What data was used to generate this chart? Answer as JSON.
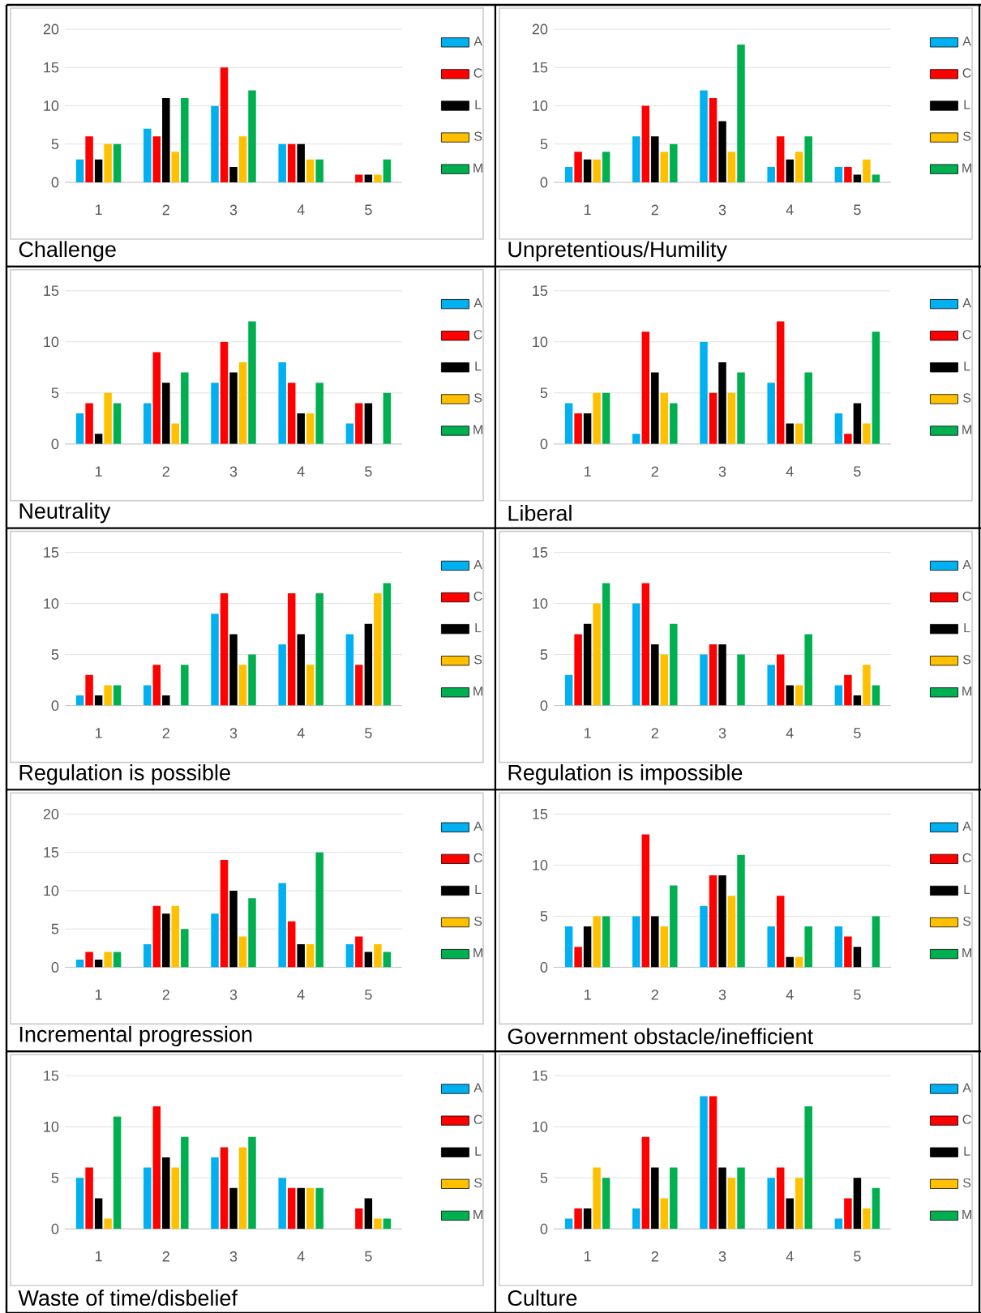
{
  "chart_data": [
    {
      "type": "bar",
      "title": "Challenge",
      "categories": [
        "1",
        "2",
        "3",
        "4",
        "5"
      ],
      "ylim": [
        0,
        20
      ],
      "yticks": [
        0,
        5,
        10,
        15,
        20
      ],
      "grid": "y",
      "legend": "right",
      "series": [
        {
          "name": "A",
          "color": "#00b0f0",
          "values": [
            3,
            7,
            10,
            5,
            0
          ]
        },
        {
          "name": "C",
          "color": "#ff0000",
          "values": [
            6,
            6,
            15,
            5,
            1
          ]
        },
        {
          "name": "L",
          "color": "#000000",
          "values": [
            3,
            11,
            2,
            5,
            1
          ]
        },
        {
          "name": "S",
          "color": "#ffc000",
          "values": [
            5,
            4,
            6,
            3,
            1
          ]
        },
        {
          "name": "M",
          "color": "#00b050",
          "values": [
            5,
            11,
            12,
            3,
            3
          ]
        }
      ]
    },
    {
      "type": "bar",
      "title": "Unpretentious/Humility",
      "categories": [
        "1",
        "2",
        "3",
        "4",
        "5"
      ],
      "ylim": [
        0,
        20
      ],
      "yticks": [
        0,
        5,
        10,
        15,
        20
      ],
      "grid": "y",
      "legend": "right",
      "series": [
        {
          "name": "A",
          "color": "#00b0f0",
          "values": [
            2,
            6,
            12,
            2,
            2
          ]
        },
        {
          "name": "C",
          "color": "#ff0000",
          "values": [
            4,
            10,
            11,
            6,
            2
          ]
        },
        {
          "name": "L",
          "color": "#000000",
          "values": [
            3,
            6,
            8,
            3,
            1
          ]
        },
        {
          "name": "S",
          "color": "#ffc000",
          "values": [
            3,
            4,
            4,
            4,
            3
          ]
        },
        {
          "name": "M",
          "color": "#00b050",
          "values": [
            4,
            5,
            18,
            6,
            1
          ]
        }
      ]
    },
    {
      "type": "bar",
      "title": "Neutrality",
      "categories": [
        "1",
        "2",
        "3",
        "4",
        "5"
      ],
      "ylim": [
        0,
        15
      ],
      "yticks": [
        0,
        5,
        10,
        15
      ],
      "grid": "y",
      "legend": "right",
      "series": [
        {
          "name": "A",
          "color": "#00b0f0",
          "values": [
            3,
            4,
            6,
            8,
            2
          ]
        },
        {
          "name": "C",
          "color": "#ff0000",
          "values": [
            4,
            9,
            10,
            6,
            4
          ]
        },
        {
          "name": "L",
          "color": "#000000",
          "values": [
            1,
            6,
            7,
            3,
            4
          ]
        },
        {
          "name": "S",
          "color": "#ffc000",
          "values": [
            5,
            2,
            8,
            3,
            0
          ]
        },
        {
          "name": "M",
          "color": "#00b050",
          "values": [
            4,
            7,
            12,
            6,
            5
          ]
        }
      ]
    },
    {
      "type": "bar",
      "title": "Liberal",
      "categories": [
        "1",
        "2",
        "3",
        "4",
        "5"
      ],
      "ylim": [
        0,
        15
      ],
      "yticks": [
        0,
        5,
        10,
        15
      ],
      "grid": "y",
      "legend": "right",
      "series": [
        {
          "name": "A",
          "color": "#00b0f0",
          "values": [
            4,
            1,
            10,
            6,
            3
          ]
        },
        {
          "name": "C",
          "color": "#ff0000",
          "values": [
            3,
            11,
            5,
            12,
            1
          ]
        },
        {
          "name": "L",
          "color": "#000000",
          "values": [
            3,
            7,
            8,
            2,
            4
          ]
        },
        {
          "name": "S",
          "color": "#ffc000",
          "values": [
            5,
            5,
            5,
            2,
            2
          ]
        },
        {
          "name": "M",
          "color": "#00b050",
          "values": [
            5,
            4,
            7,
            7,
            11
          ]
        }
      ]
    },
    {
      "type": "bar",
      "title": "Regulation is possible",
      "categories": [
        "1",
        "2",
        "3",
        "4",
        "5"
      ],
      "ylim": [
        0,
        15
      ],
      "yticks": [
        0,
        5,
        10,
        15
      ],
      "grid": "y",
      "legend": "right",
      "series": [
        {
          "name": "A",
          "color": "#00b0f0",
          "values": [
            1,
            2,
            9,
            6,
            7
          ]
        },
        {
          "name": "C",
          "color": "#ff0000",
          "values": [
            3,
            4,
            11,
            11,
            4
          ]
        },
        {
          "name": "L",
          "color": "#000000",
          "values": [
            1,
            1,
            7,
            7,
            8
          ]
        },
        {
          "name": "S",
          "color": "#ffc000",
          "values": [
            2,
            0,
            4,
            4,
            11
          ]
        },
        {
          "name": "M",
          "color": "#00b050",
          "values": [
            2,
            4,
            5,
            11,
            12
          ]
        }
      ]
    },
    {
      "type": "bar",
      "title": "Regulation is impossible",
      "categories": [
        "1",
        "2",
        "3",
        "4",
        "5"
      ],
      "ylim": [
        0,
        15
      ],
      "yticks": [
        0,
        5,
        10,
        15
      ],
      "grid": "y",
      "legend": "right",
      "series": [
        {
          "name": "A",
          "color": "#00b0f0",
          "values": [
            3,
            10,
            5,
            4,
            2
          ]
        },
        {
          "name": "C",
          "color": "#ff0000",
          "values": [
            7,
            12,
            6,
            5,
            3
          ]
        },
        {
          "name": "L",
          "color": "#000000",
          "values": [
            8,
            6,
            6,
            2,
            1
          ]
        },
        {
          "name": "S",
          "color": "#ffc000",
          "values": [
            10,
            5,
            0,
            2,
            4
          ]
        },
        {
          "name": "M",
          "color": "#00b050",
          "values": [
            12,
            8,
            5,
            7,
            2
          ]
        }
      ]
    },
    {
      "type": "bar",
      "title": "Incremental progression",
      "categories": [
        "1",
        "2",
        "3",
        "4",
        "5"
      ],
      "ylim": [
        0,
        20
      ],
      "yticks": [
        0,
        5,
        10,
        15,
        20
      ],
      "grid": "y",
      "legend": "right",
      "series": [
        {
          "name": "A",
          "color": "#00b0f0",
          "values": [
            1,
            3,
            7,
            11,
            3
          ]
        },
        {
          "name": "C",
          "color": "#ff0000",
          "values": [
            2,
            8,
            14,
            6,
            4
          ]
        },
        {
          "name": "L",
          "color": "#000000",
          "values": [
            1,
            7,
            10,
            3,
            2
          ]
        },
        {
          "name": "S",
          "color": "#ffc000",
          "values": [
            2,
            8,
            4,
            3,
            3
          ]
        },
        {
          "name": "M",
          "color": "#00b050",
          "values": [
            2,
            5,
            9,
            15,
            2
          ]
        }
      ]
    },
    {
      "type": "bar",
      "title": "Government obstacle/inefficient",
      "categories": [
        "1",
        "2",
        "3",
        "4",
        "5"
      ],
      "ylim": [
        0,
        15
      ],
      "yticks": [
        0,
        5,
        10,
        15
      ],
      "grid": "y",
      "legend": "right",
      "series": [
        {
          "name": "A",
          "color": "#00b0f0",
          "values": [
            4,
            5,
            6,
            4,
            4
          ]
        },
        {
          "name": "C",
          "color": "#ff0000",
          "values": [
            2,
            13,
            9,
            7,
            3
          ]
        },
        {
          "name": "L",
          "color": "#000000",
          "values": [
            4,
            5,
            9,
            1,
            2
          ]
        },
        {
          "name": "S",
          "color": "#ffc000",
          "values": [
            5,
            4,
            7,
            1,
            0
          ]
        },
        {
          "name": "M",
          "color": "#00b050",
          "values": [
            5,
            8,
            11,
            4,
            5
          ]
        }
      ]
    },
    {
      "type": "bar",
      "title": "Waste of time/disbelief",
      "categories": [
        "1",
        "2",
        "3",
        "4",
        "5"
      ],
      "ylim": [
        0,
        15
      ],
      "yticks": [
        0,
        5,
        10,
        15
      ],
      "grid": "y",
      "legend": "right",
      "series": [
        {
          "name": "A",
          "color": "#00b0f0",
          "values": [
            5,
            6,
            7,
            5,
            0
          ]
        },
        {
          "name": "C",
          "color": "#ff0000",
          "values": [
            6,
            12,
            8,
            4,
            2
          ]
        },
        {
          "name": "L",
          "color": "#000000",
          "values": [
            3,
            7,
            4,
            4,
            3
          ]
        },
        {
          "name": "S",
          "color": "#ffc000",
          "values": [
            1,
            6,
            8,
            4,
            1
          ]
        },
        {
          "name": "M",
          "color": "#00b050",
          "values": [
            11,
            9,
            9,
            4,
            1
          ]
        }
      ]
    },
    {
      "type": "bar",
      "title": "Culture",
      "categories": [
        "1",
        "2",
        "3",
        "4",
        "5"
      ],
      "ylim": [
        0,
        15
      ],
      "yticks": [
        0,
        5,
        10,
        15
      ],
      "grid": "y",
      "legend": "right",
      "series": [
        {
          "name": "A",
          "color": "#00b0f0",
          "values": [
            1,
            2,
            13,
            5,
            1
          ]
        },
        {
          "name": "C",
          "color": "#ff0000",
          "values": [
            2,
            9,
            13,
            6,
            3
          ]
        },
        {
          "name": "L",
          "color": "#000000",
          "values": [
            2,
            6,
            6,
            3,
            5
          ]
        },
        {
          "name": "S",
          "color": "#ffc000",
          "values": [
            6,
            3,
            5,
            5,
            2
          ]
        },
        {
          "name": "M",
          "color": "#00b050",
          "values": [
            5,
            6,
            6,
            12,
            4
          ]
        }
      ]
    }
  ]
}
